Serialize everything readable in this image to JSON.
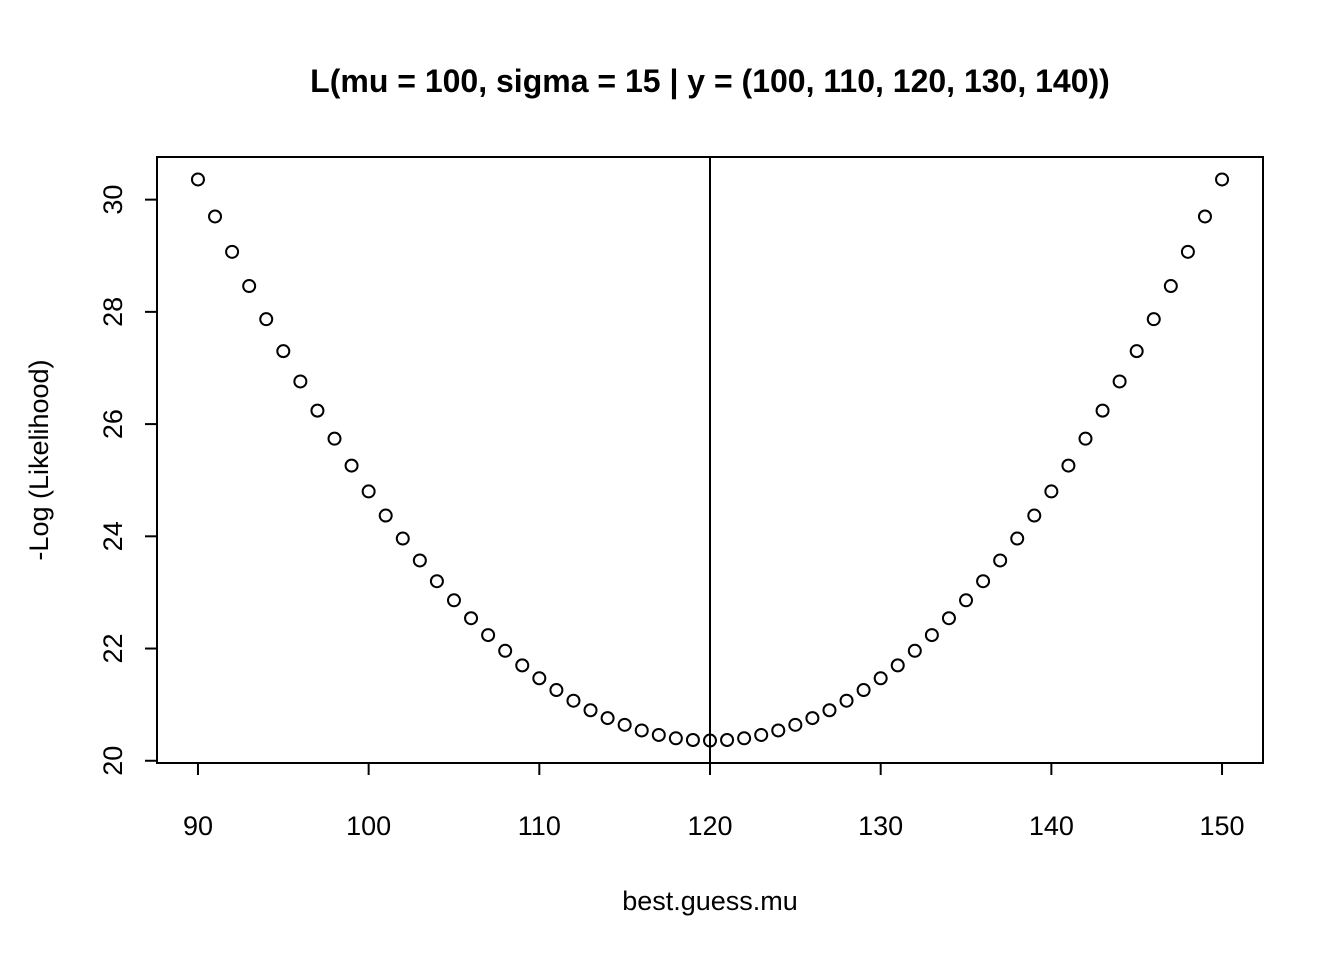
{
  "chart_data": {
    "type": "scatter",
    "title": "L(mu = 100, sigma = 15 | y = (100, 110, 120, 130, 140))",
    "x_label": "best.guess.mu",
    "y_label": "-Log (Likelihood)",
    "x": [
      90,
      91,
      92,
      93,
      94,
      95,
      96,
      97,
      98,
      99,
      100,
      101,
      102,
      103,
      104,
      105,
      106,
      107,
      108,
      109,
      110,
      111,
      112,
      113,
      114,
      115,
      116,
      117,
      118,
      119,
      120,
      121,
      122,
      123,
      124,
      125,
      126,
      127,
      128,
      129,
      130,
      131,
      132,
      133,
      134,
      135,
      136,
      137,
      138,
      139,
      140,
      141,
      142,
      143,
      144,
      145,
      146,
      147,
      148,
      149,
      150
    ],
    "values": [
      30.36,
      29.7,
      29.07,
      28.46,
      27.87,
      27.3,
      26.76,
      26.24,
      25.74,
      25.26,
      24.8,
      24.37,
      23.96,
      23.57,
      23.2,
      22.86,
      22.54,
      22.24,
      21.96,
      21.7,
      21.47,
      21.26,
      21.07,
      20.9,
      20.76,
      20.64,
      20.54,
      20.46,
      20.4,
      20.37,
      20.36,
      20.37,
      20.4,
      20.46,
      20.54,
      20.64,
      20.76,
      20.9,
      21.07,
      21.26,
      21.47,
      21.7,
      21.96,
      22.24,
      22.54,
      22.86,
      23.2,
      23.57,
      23.96,
      24.37,
      24.8,
      25.26,
      25.74,
      26.24,
      26.76,
      27.3,
      27.87,
      28.46,
      29.07,
      29.7,
      30.36
    ],
    "color": "#000000",
    "xlim": [
      87.6,
      152.4
    ],
    "xticks": [
      90,
      100,
      110,
      120,
      130,
      140,
      150
    ],
    "ylim": [
      19.96,
      30.76
    ],
    "yticks": [
      20,
      22,
      24,
      26,
      28,
      30
    ],
    "vline": 120
  }
}
